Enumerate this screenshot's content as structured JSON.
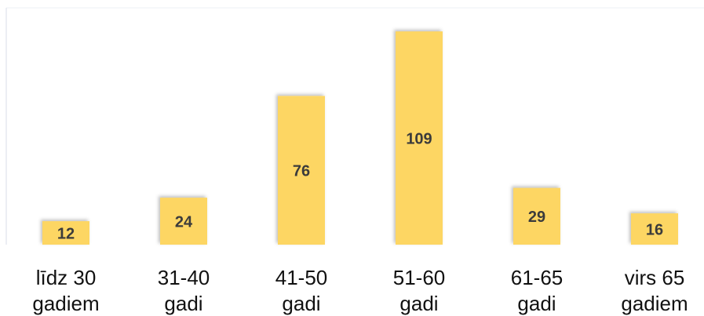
{
  "chart_data": {
    "type": "bar",
    "categories": [
      "līdz 30 gadiem",
      "31-40 gadi",
      "41-50 gadi",
      "51-60 gadi",
      "61-65 gadi",
      "virs 65 gadiem"
    ],
    "values": [
      12,
      24,
      76,
      109,
      29,
      16
    ],
    "color": "#fdd663",
    "ylim": [
      0,
      120
    ]
  }
}
